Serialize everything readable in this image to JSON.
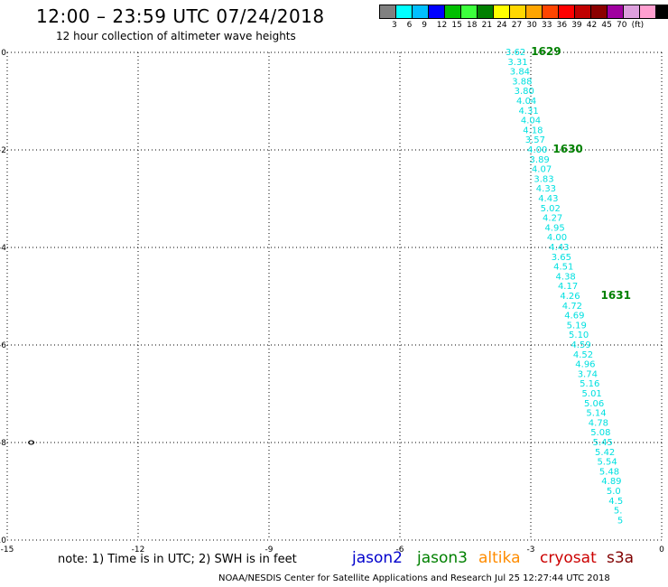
{
  "header": {
    "title": "12:00 – 23:59 UTC 07/24/2018",
    "subtitle": "12 hour collection of altimeter wave heights"
  },
  "color_scale": {
    "colors": [
      "#808080",
      "#00ffff",
      "#00bfff",
      "#0000ff",
      "#00bf00",
      "#3cff3c",
      "#008000",
      "#ffff00",
      "#ffd700",
      "#ffa500",
      "#ff4500",
      "#ff0000",
      "#c00000",
      "#8b0000",
      "#a000a0",
      "#dda0dd",
      "#ff9fd0",
      "#000000"
    ],
    "labels": [
      "3",
      "6",
      "9",
      "12",
      "15",
      "18",
      "21",
      "24",
      "27",
      "30",
      "33",
      "36",
      "39",
      "42",
      "45",
      "70",
      "(ft)"
    ]
  },
  "chart_data": {
    "type": "scatter",
    "xlim": [
      -15,
      0
    ],
    "ylim": [
      -10,
      0
    ],
    "x_ticks": [
      "-15",
      "-12",
      "-9",
      "-6",
      "-3",
      "0"
    ],
    "y_ticks": [
      "0",
      "-2",
      "-4",
      "-6",
      "-8",
      "-10"
    ],
    "grid": "dotted",
    "series": [
      {
        "name": "jason3",
        "color": "#00e0e0",
        "points": [
          {
            "x": -3.35,
            "y": -0.0,
            "v": "3.62"
          },
          {
            "x": -3.3,
            "y": -0.2,
            "v": "3.31"
          },
          {
            "x": -3.25,
            "y": -0.4,
            "v": "3.84"
          },
          {
            "x": -3.2,
            "y": -0.6,
            "v": "3.88"
          },
          {
            "x": -3.15,
            "y": -0.8,
            "v": "3.80"
          },
          {
            "x": -3.1,
            "y": -1.0,
            "v": "4.04"
          },
          {
            "x": -3.05,
            "y": -1.2,
            "v": "4.31"
          },
          {
            "x": -3.0,
            "y": -1.4,
            "v": "4.04"
          },
          {
            "x": -2.95,
            "y": -1.6,
            "v": "4.18"
          },
          {
            "x": -2.9,
            "y": -1.8,
            "v": "3.57"
          },
          {
            "x": -2.85,
            "y": -2.0,
            "v": "4.00"
          },
          {
            "x": -2.8,
            "y": -2.2,
            "v": "3.89"
          },
          {
            "x": -2.75,
            "y": -2.4,
            "v": "4.07"
          },
          {
            "x": -2.7,
            "y": -2.6,
            "v": "3.83"
          },
          {
            "x": -2.65,
            "y": -2.8,
            "v": "4.33"
          },
          {
            "x": -2.6,
            "y": -3.0,
            "v": "4.43"
          },
          {
            "x": -2.55,
            "y": -3.2,
            "v": "5.02"
          },
          {
            "x": -2.5,
            "y": -3.4,
            "v": "4.27"
          },
          {
            "x": -2.45,
            "y": -3.6,
            "v": "4.95"
          },
          {
            "x": -2.4,
            "y": -3.8,
            "v": "4.00"
          },
          {
            "x": -2.35,
            "y": -4.0,
            "v": "4.43"
          },
          {
            "x": -2.3,
            "y": -4.2,
            "v": "3.65"
          },
          {
            "x": -2.25,
            "y": -4.4,
            "v": "4.51"
          },
          {
            "x": -2.2,
            "y": -4.6,
            "v": "4.38"
          },
          {
            "x": -2.15,
            "y": -4.8,
            "v": "4.17"
          },
          {
            "x": -2.1,
            "y": -5.0,
            "v": "4.26"
          },
          {
            "x": -2.05,
            "y": -5.2,
            "v": "4.72"
          },
          {
            "x": -2.0,
            "y": -5.4,
            "v": "4.69"
          },
          {
            "x": -1.95,
            "y": -5.6,
            "v": "5.19"
          },
          {
            "x": -1.9,
            "y": -5.8,
            "v": "5.10"
          },
          {
            "x": -1.85,
            "y": -6.0,
            "v": "4.59"
          },
          {
            "x": -1.8,
            "y": -6.2,
            "v": "4.52"
          },
          {
            "x": -1.75,
            "y": -6.4,
            "v": "4.96"
          },
          {
            "x": -1.7,
            "y": -6.6,
            "v": "3.74"
          },
          {
            "x": -1.65,
            "y": -6.8,
            "v": "5.16"
          },
          {
            "x": -1.6,
            "y": -7.0,
            "v": "5.01"
          },
          {
            "x": -1.55,
            "y": -7.2,
            "v": "5.06"
          },
          {
            "x": -1.5,
            "y": -7.4,
            "v": "5.14"
          },
          {
            "x": -1.45,
            "y": -7.6,
            "v": "4.78"
          },
          {
            "x": -1.4,
            "y": -7.8,
            "v": "5.08"
          },
          {
            "x": -1.35,
            "y": -8.0,
            "v": "5.45"
          },
          {
            "x": -1.3,
            "y": -8.2,
            "v": "5.42"
          },
          {
            "x": -1.25,
            "y": -8.4,
            "v": "5.54"
          },
          {
            "x": -1.2,
            "y": -8.6,
            "v": "5.48"
          },
          {
            "x": -1.15,
            "y": -8.8,
            "v": "4.89"
          },
          {
            "x": -1.1,
            "y": -9.0,
            "v": "5.0"
          },
          {
            "x": -1.05,
            "y": -9.2,
            "v": "4.5"
          },
          {
            "x": -1.0,
            "y": -9.4,
            "v": "5."
          },
          {
            "x": -0.95,
            "y": -9.6,
            "v": "5"
          }
        ]
      }
    ],
    "annotations": [
      {
        "x": -2.65,
        "y": -0.0,
        "text": "1629"
      },
      {
        "x": -2.15,
        "y": -2.0,
        "text": "1630"
      },
      {
        "x": -1.05,
        "y": -5.0,
        "text": "1631"
      }
    ],
    "markers": [
      {
        "x": -14.45,
        "y": -8.0,
        "symbol": "ring"
      }
    ]
  },
  "footer": {
    "note": "note: 1) Time is in UTC; 2) SWH is in feet",
    "satellites": [
      {
        "name": "jason2",
        "color": "#0000cc"
      },
      {
        "name": "jason3",
        "color": "#008000"
      },
      {
        "name": "altika",
        "color": "#ff8c00"
      },
      {
        "name": "cryosat",
        "color": "#cc0000"
      },
      {
        "name": "s3a",
        "color": "#800000"
      }
    ],
    "credit": "NOAA/NESDIS Center for Satellite Applications and Research   Jul 25 12:27:44 UTC 2018"
  }
}
